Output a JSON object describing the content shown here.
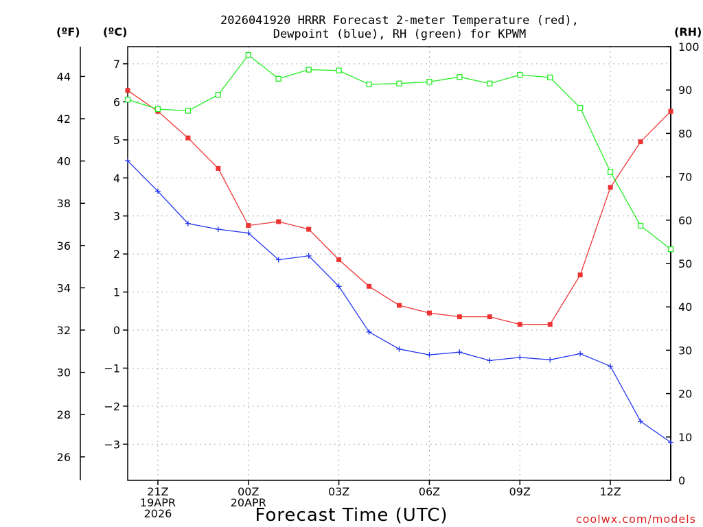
{
  "chart_data": {
    "type": "line",
    "title_line1": "2026041920 HRRR Forecast 2-meter Temperature (red),",
    "title_line2": "Dewpoint (blue), RH (green) for KPWM",
    "xlabel": "Forecast Time (UTC)",
    "credit": "coolwx.com/models",
    "units": {
      "fahrenheit": "(ºF)",
      "celsius": "(ºC)",
      "rh": "(RH)"
    },
    "x": [
      20,
      21,
      22,
      23,
      24,
      25,
      26,
      27,
      28,
      29,
      30,
      31,
      32,
      33,
      34,
      35,
      36,
      37,
      38
    ],
    "xlim": [
      20,
      38
    ],
    "x_ticks": [
      {
        "x": 21,
        "lines": [
          "21Z",
          "19APR",
          "2026"
        ]
      },
      {
        "x": 24,
        "lines": [
          "00Z",
          "20APR"
        ]
      },
      {
        "x": 27,
        "lines": [
          "03Z"
        ]
      },
      {
        "x": 30,
        "lines": [
          "06Z"
        ]
      },
      {
        "x": 33,
        "lines": [
          "09Z"
        ]
      },
      {
        "x": 36,
        "lines": [
          "12Z"
        ]
      }
    ],
    "celsius_ylim": [
      -3.95,
      7.45
    ],
    "celsius_ticks": [
      7,
      6,
      5,
      4,
      3,
      2,
      1,
      0,
      -1,
      -2,
      -3
    ],
    "celsius_tick_labels": [
      "7",
      "6",
      "5",
      "4",
      "3",
      "2",
      "1",
      "0",
      "−1",
      "−2",
      "−3"
    ],
    "fahrenheit_ticks": [
      44,
      42,
      40,
      38,
      36,
      34,
      32,
      30,
      28,
      26
    ],
    "rh_ylim": [
      0,
      100
    ],
    "rh_ticks": [
      100,
      90,
      80,
      70,
      60,
      50,
      40,
      30,
      20,
      10,
      0
    ],
    "series": [
      {
        "name": "Temperature",
        "axis": "celsius",
        "color": "#ee3333",
        "marker": "filled-square",
        "values": [
          6.3,
          5.75,
          5.05,
          4.25,
          2.75,
          2.85,
          2.65,
          1.85,
          1.15,
          0.65,
          0.45,
          0.35,
          0.35,
          0.15,
          0.15,
          1.45,
          3.75,
          4.95,
          5.75
        ]
      },
      {
        "name": "Dewpoint",
        "axis": "celsius",
        "color": "#2233ee",
        "marker": "plus",
        "values": [
          4.45,
          3.65,
          2.8,
          2.65,
          2.55,
          1.85,
          1.95,
          1.15,
          -0.05,
          -0.5,
          -0.65,
          -0.58,
          -0.8,
          -0.72,
          -0.78,
          -0.62,
          -0.95,
          -2.4,
          -2.95
        ]
      },
      {
        "name": "RH",
        "axis": "rh",
        "color": "#22ee22",
        "marker": "open-square",
        "values": [
          87.8,
          85.6,
          85.2,
          88.9,
          98.1,
          92.6,
          94.7,
          94.5,
          91.3,
          91.5,
          91.9,
          93.0,
          91.5,
          93.5,
          92.9,
          85.9,
          71.1,
          58.7,
          53.3
        ]
      }
    ]
  }
}
